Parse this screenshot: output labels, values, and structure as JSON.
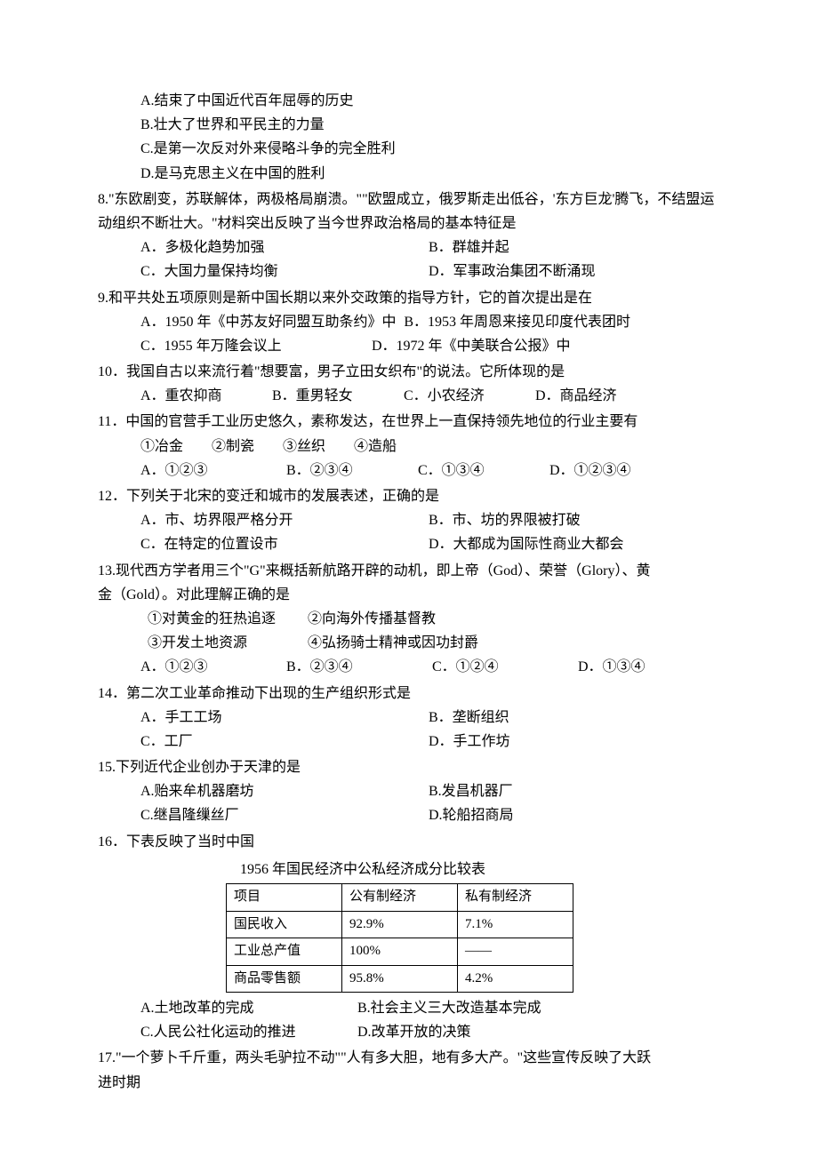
{
  "q7": {
    "optA": "A.结束了中国近代百年屈辱的历史",
    "optB": "B.壮大了世界和平民主的力量",
    "optC": "C.是第一次反对外来侵略斗争的完全胜利",
    "optD": "D.是马克思主义在中国的胜利"
  },
  "q8": {
    "text": "8.\"东欧剧变，苏联解体，两极格局崩溃。\"\"欧盟成立，俄罗斯走出低谷，'东方巨龙'腾飞，不结盟运动组织不断壮大。\"材料突出反映了当今世界政治格局的基本特征是",
    "optA": "A．多极化趋势加强",
    "optB": "B．群雄并起",
    "optC": "C．大国力量保持均衡",
    "optD": "D．军事政治集团不断涌现"
  },
  "q9": {
    "text": "9.和平共处五项原则是新中国长期以来外交政策的指导方针，它的首次提出是在",
    "optA": "A．1950 年《中苏友好同盟互助条约》中",
    "optB": "B．1953 年周恩来接见印度代表团时",
    "optC": "C．1955 年万隆会议上",
    "optD": "D．1972 年《中美联合公报》中"
  },
  "q10": {
    "text": "10．我国自古以来流行着\"想要富，男子立田女织布\"的说法。它所体现的是",
    "optA": "A．重农抑商",
    "optB": "B．重男轻女",
    "optC": "C．小农经济",
    "optD": "D．商品经济"
  },
  "q11": {
    "text": "11．中国的官营手工业历史悠久，素称发达，在世界上一直保持领先地位的行业主要有",
    "items": "①冶金　　②制瓷　　③丝织　　④造船",
    "optA": "A．①②③",
    "optB": "B．②③④",
    "optC": "C．①③④",
    "optD": "D．①②③④"
  },
  "q12": {
    "text": "12．下列关于北宋的变迁和城市的发展表述，正确的是",
    "optA": "A．市、坊界限严格分开",
    "optB": "B．市、坊的界限被打破",
    "optC": "C．在特定的位置设市",
    "optD": "D．大都成为国际性商业大都会"
  },
  "q13": {
    "text1": "13.现代西方学者用三个\"G\"来概括新航路开辟的动机，即上帝（God）、荣誉（Glory）、黄",
    "text2": "金（Gold）。对此理解正确的是",
    "item1": "①对黄金的狂热追逐",
    "item2": "②向海外传播基督教",
    "item3": "③开发土地资源",
    "item4": "④弘扬骑士精神或因功封爵",
    "optA": "A．①②③",
    "optB": "B．②③④",
    "optC": "C．①②④",
    "optD": "D．①③④"
  },
  "q14": {
    "text": "14．第二次工业革命推动下出现的生产组织形式是",
    "optA": "A．手工工场",
    "optB": "B．垄断组织",
    "optC": "C．工厂",
    "optD": "D．手工作坊"
  },
  "q15": {
    "text": "15.下列近代企业创办于天津的是",
    "optA": "A.贻来牟机器磨坊",
    "optB": "B.发昌机器厂",
    "optC": "C.继昌隆缫丝厂",
    "optD": "D.轮船招商局"
  },
  "q16": {
    "text": "16．下表反映了当时中国",
    "caption": "1956 年国民经济中公私经济成分比较表",
    "table": {
      "headers": [
        "项目",
        "公有制经济",
        "私有制经济"
      ],
      "rows": [
        [
          "国民收入",
          "92.9%",
          "7.1%"
        ],
        [
          "工业总产值",
          "100%",
          "——"
        ],
        [
          "商品零售额",
          "95.8%",
          "4.2%"
        ]
      ]
    },
    "optA": "A.土地改革的完成",
    "optB": "B.社会主义三大改造基本完成",
    "optC": "C.人民公社化运动的推进",
    "optD": "D.改革开放的决策"
  },
  "q17": {
    "text1": "17.\"一个萝卜千斤重，两头毛驴拉不动\"\"人有多大胆，地有多大产。\"这些宣传反映了大跃",
    "text2": "进时期"
  }
}
